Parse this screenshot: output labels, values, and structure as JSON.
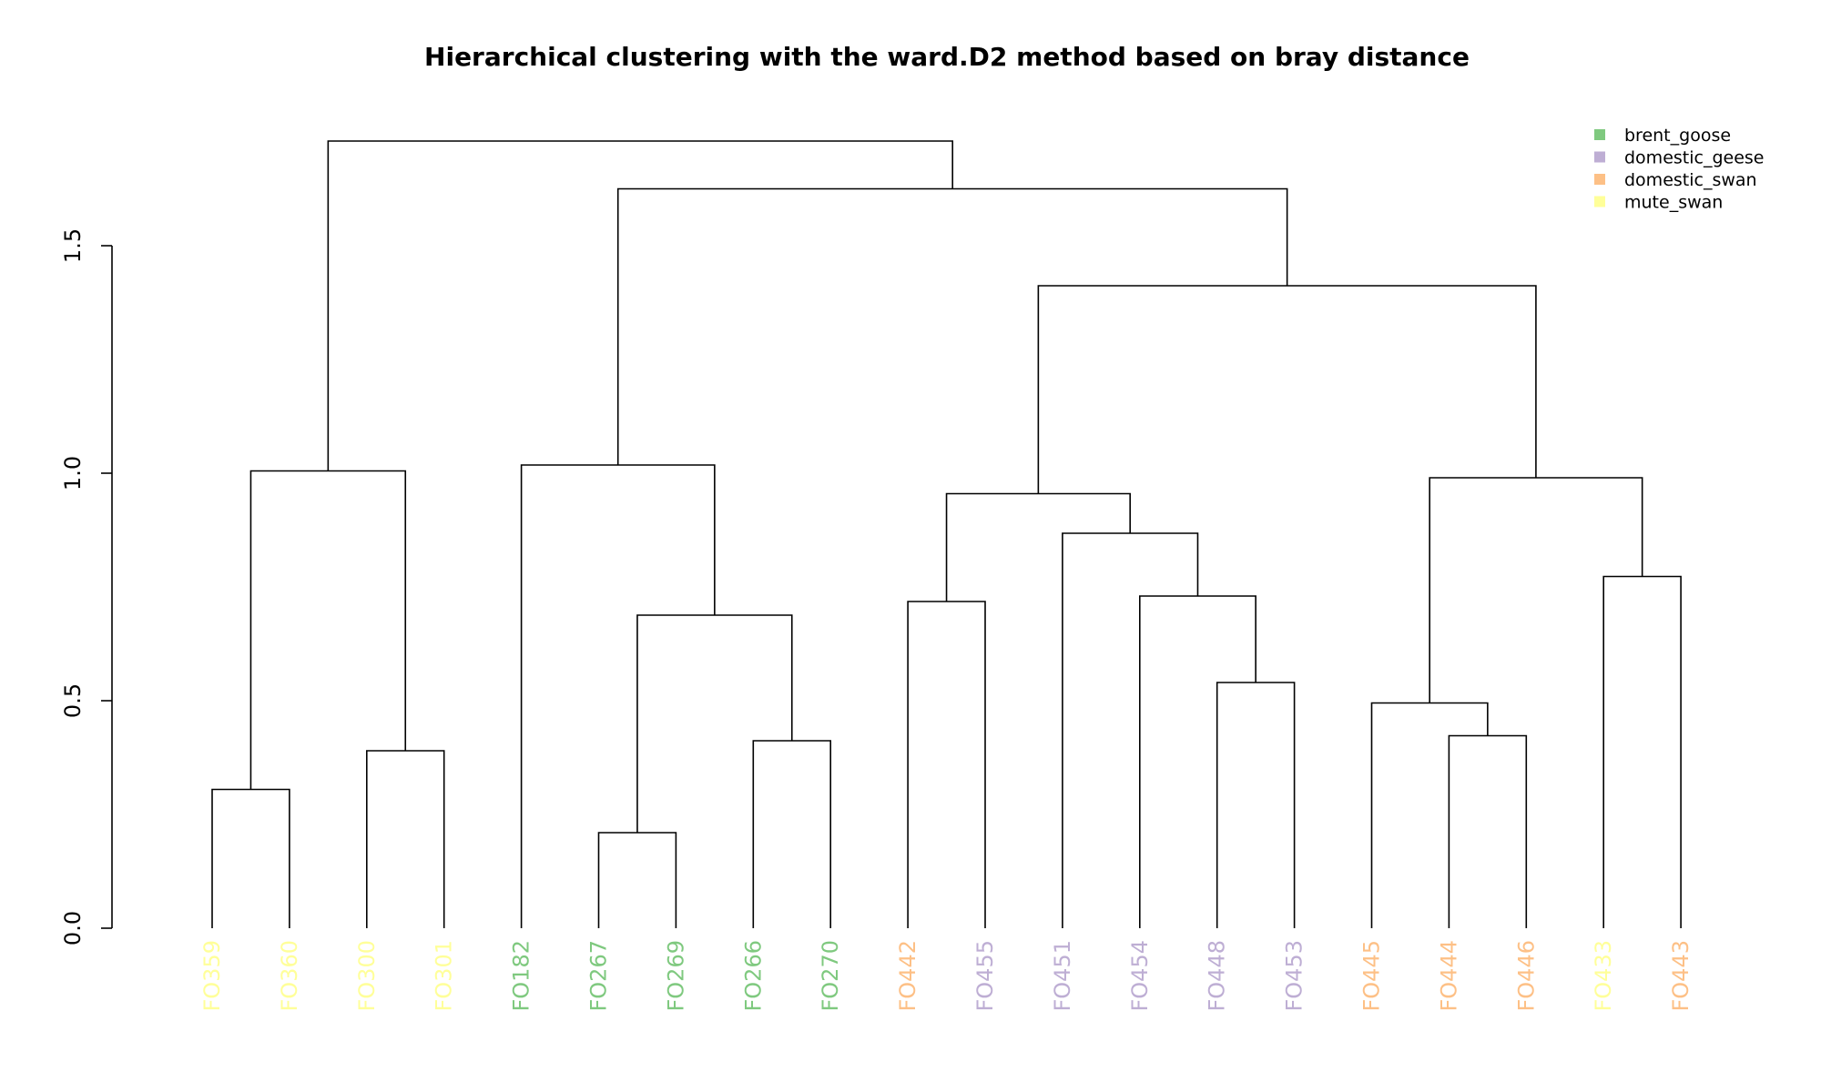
{
  "chart_data": {
    "type": "dendrogram",
    "title": "Hierarchical clustering with the ward.D2 method based on bray distance",
    "ylim": [
      0,
      1.5
    ],
    "y_ticks": [
      0.0,
      0.5,
      1.0,
      1.5
    ],
    "y_tick_labels": [
      "0.0",
      "0.5",
      "1.0",
      "1.5"
    ],
    "legend_position": "top-right",
    "groups": [
      {
        "name": "brent_goose",
        "color": "#7fc97f"
      },
      {
        "name": "domestic_geese",
        "color": "#beaed4"
      },
      {
        "name": "domestic_swan",
        "color": "#fdc086"
      },
      {
        "name": "mute_swan",
        "color": "#ffff99"
      }
    ],
    "leaves": [
      {
        "label": "FO359",
        "group": "mute_swan"
      },
      {
        "label": "FO360",
        "group": "mute_swan"
      },
      {
        "label": "FO300",
        "group": "mute_swan"
      },
      {
        "label": "FO301",
        "group": "mute_swan"
      },
      {
        "label": "FO182",
        "group": "brent_goose"
      },
      {
        "label": "FO267",
        "group": "brent_goose"
      },
      {
        "label": "FO269",
        "group": "brent_goose"
      },
      {
        "label": "FO266",
        "group": "brent_goose"
      },
      {
        "label": "FO270",
        "group": "brent_goose"
      },
      {
        "label": "FO442",
        "group": "domestic_swan"
      },
      {
        "label": "FO455",
        "group": "domestic_geese"
      },
      {
        "label": "FO451",
        "group": "domestic_geese"
      },
      {
        "label": "FO454",
        "group": "domestic_geese"
      },
      {
        "label": "FO448",
        "group": "domestic_geese"
      },
      {
        "label": "FO453",
        "group": "domestic_geese"
      },
      {
        "label": "FO445",
        "group": "domestic_swan"
      },
      {
        "label": "FO444",
        "group": "domestic_swan"
      },
      {
        "label": "FO446",
        "group": "domestic_swan"
      },
      {
        "label": "FO433",
        "group": "mute_swan"
      },
      {
        "label": "FO443",
        "group": "domestic_swan"
      }
    ],
    "merges": [
      {
        "id": "m1",
        "left": "L0",
        "right": "L1",
        "height": 0.305
      },
      {
        "id": "m2",
        "left": "L2",
        "right": "L3",
        "height": 0.39
      },
      {
        "id": "m3",
        "left": "m1",
        "right": "m2",
        "height": 1.005
      },
      {
        "id": "m4",
        "left": "L5",
        "right": "L6",
        "height": 0.21
      },
      {
        "id": "m5",
        "left": "L7",
        "right": "L8",
        "height": 0.412
      },
      {
        "id": "m6",
        "left": "m4",
        "right": "m5",
        "height": 0.688
      },
      {
        "id": "m7",
        "left": "L4",
        "right": "m6",
        "height": 1.018
      },
      {
        "id": "m8",
        "left": "L9",
        "right": "L10",
        "height": 0.718
      },
      {
        "id": "m9",
        "left": "L13",
        "right": "L14",
        "height": 0.54
      },
      {
        "id": "m10",
        "left": "L12",
        "right": "m9",
        "height": 0.73
      },
      {
        "id": "m11",
        "left": "L11",
        "right": "m10",
        "height": 0.868
      },
      {
        "id": "m12",
        "left": "m8",
        "right": "m11",
        "height": 0.955
      },
      {
        "id": "m13",
        "left": "L16",
        "right": "L17",
        "height": 0.423
      },
      {
        "id": "m14",
        "left": "L15",
        "right": "m13",
        "height": 0.495
      },
      {
        "id": "m15",
        "left": "L18",
        "right": "L19",
        "height": 0.773
      },
      {
        "id": "m16",
        "left": "m14",
        "right": "m15",
        "height": 0.99
      },
      {
        "id": "m17",
        "left": "m12",
        "right": "m16",
        "height": 1.412
      },
      {
        "id": "m18",
        "left": "m7",
        "right": "m17",
        "height": 1.625
      },
      {
        "id": "m19",
        "left": "m3",
        "right": "m18",
        "height": 1.73
      }
    ]
  }
}
